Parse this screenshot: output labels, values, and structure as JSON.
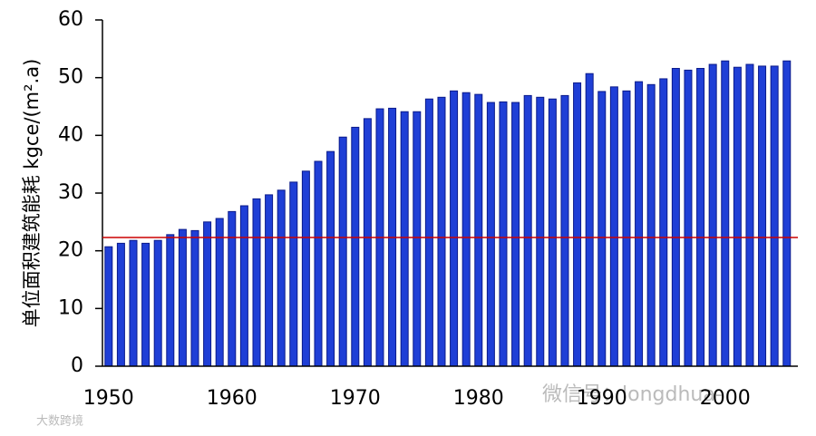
{
  "chart_data": {
    "type": "bar",
    "ylabel": "单位面积建筑能耗 kgce/(m².a)",
    "x": [
      1950,
      1951,
      1952,
      1953,
      1954,
      1955,
      1956,
      1957,
      1958,
      1959,
      1960,
      1961,
      1962,
      1963,
      1964,
      1965,
      1966,
      1967,
      1968,
      1969,
      1970,
      1971,
      1972,
      1973,
      1974,
      1975,
      1976,
      1977,
      1978,
      1979,
      1980,
      1981,
      1982,
      1983,
      1984,
      1985,
      1986,
      1987,
      1988,
      1989,
      1990,
      1991,
      1992,
      1993,
      1994,
      1995,
      1996,
      1997,
      1998,
      1999,
      2000,
      2001,
      2002,
      2003,
      2004,
      2005
    ],
    "values": [
      20.7,
      21.3,
      21.8,
      21.3,
      21.8,
      22.8,
      23.7,
      23.5,
      25.0,
      25.6,
      26.8,
      27.8,
      29.0,
      29.7,
      30.5,
      31.9,
      33.8,
      35.5,
      37.2,
      39.7,
      41.4,
      42.9,
      44.6,
      44.7,
      44.1,
      44.1,
      46.3,
      46.6,
      47.7,
      47.4,
      47.1,
      45.7,
      45.8,
      45.7,
      46.9,
      46.6,
      46.3,
      46.9,
      49.1,
      50.7,
      47.6,
      48.4,
      47.7,
      49.3,
      48.8,
      49.8,
      51.6,
      51.3,
      51.6,
      52.3,
      52.9,
      51.8,
      52.3,
      52.0,
      52.0,
      52.9
    ],
    "color": "#1f3fd6",
    "xlim": [
      1949.5,
      2005.9
    ],
    "xticks": [
      1950,
      1960,
      1970,
      1980,
      1990,
      2000
    ],
    "ylim": [
      0,
      60
    ],
    "yticks": [
      0,
      10,
      20,
      30,
      40,
      50,
      60
    ],
    "reference_line": {
      "value": 22.3,
      "color": "#cc0000"
    },
    "watermarks": [
      "微信号：longdhua-",
      "大数跨境"
    ]
  }
}
